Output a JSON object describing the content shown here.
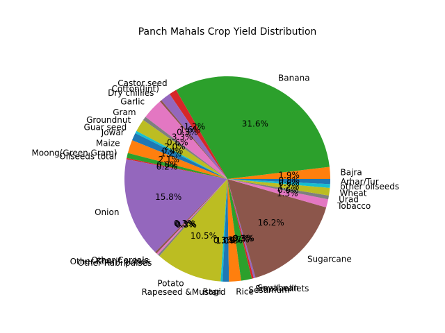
{
  "chart_data": {
    "type": "pie",
    "title": "Panch Mahals Crop Yield Distribution",
    "colors": [
      "#ff7f0e",
      "#2ca02c",
      "#d62728",
      "#9467bd",
      "#8c564b",
      "#e377c2",
      "#7f7f7f",
      "#bcbd22",
      "#17becf",
      "#1f77b4"
    ],
    "slices": [
      {
        "label": "Bajra",
        "value": 1.9,
        "pct_label": "1.9%"
      },
      {
        "label": "Banana",
        "value": 31.6,
        "pct_label": "31.6%"
      },
      {
        "label": "Castor seed",
        "value": 1.2,
        "pct_label": "1.2%"
      },
      {
        "label": "Cotton(lint)",
        "value": 1.6,
        "pct_label": "1.6%"
      },
      {
        "label": "Dry chillies",
        "value": 0.3,
        "pct_label": "0.3%"
      },
      {
        "label": "Garlic",
        "value": 3.3,
        "pct_label": "3.3%"
      },
      {
        "label": "Gram",
        "value": 0.6,
        "pct_label": "0.6%"
      },
      {
        "label": "Groundnut",
        "value": 2.0,
        "pct_label": "2.0%"
      },
      {
        "label": "Guar seed",
        "value": 0.4,
        "pct_label": "0.4%"
      },
      {
        "label": "Jowar",
        "value": 1.2,
        "pct_label": "1.2%"
      },
      {
        "label": "Maize",
        "value": 2.1,
        "pct_label": "2.1%"
      },
      {
        "label": "Moong(Green Gram)",
        "value": 0.8,
        "pct_label": "0.8%"
      },
      {
        "label": "Oilseeds total",
        "value": 0.2,
        "pct_label": "0.2%"
      },
      {
        "label": "Onion",
        "value": 15.8,
        "pct_label": "15.8%"
      },
      {
        "label": "Other Cereals",
        "value": 0.3,
        "pct_label": "0.3%"
      },
      {
        "label": "Other Kharif pulses",
        "value": 0.3,
        "pct_label": "0.3%"
      },
      {
        "label": "Other Rabi pulses",
        "value": 0.3,
        "pct_label": "0.3%"
      },
      {
        "label": "Potato",
        "value": 10.5,
        "pct_label": "10.5%"
      },
      {
        "label": "Ragi",
        "value": 0.3,
        "pct_label": "0.3%"
      },
      {
        "label": "Rapeseed &Mustard",
        "value": 1.0,
        "pct_label": "1.0%"
      },
      {
        "label": "Rice",
        "value": 1.9,
        "pct_label": "1.9%"
      },
      {
        "label": "Sesamum",
        "value": 1.7,
        "pct_label": "1.7%"
      },
      {
        "label": "Small millets",
        "value": 0.3,
        "pct_label": "0.3%"
      },
      {
        "label": "Soyabean",
        "value": 0.3,
        "pct_label": "0.3%"
      },
      {
        "label": "Sugarcane",
        "value": 16.2,
        "pct_label": "16.2%"
      },
      {
        "label": "Tobacco",
        "value": 1.3,
        "pct_label": "1.3%"
      },
      {
        "label": "Urad",
        "value": 0.6,
        "pct_label": "0.6%"
      },
      {
        "label": "Wheat",
        "value": 1.2,
        "pct_label": "1.2%"
      },
      {
        "label": "other oilseeds",
        "value": 0.6,
        "pct_label": "0.6%"
      },
      {
        "label": "Arhar/Tur",
        "value": 0.8,
        "pct_label": "0.8%"
      }
    ],
    "start_angle_deg": 0,
    "direction": "counterclockwise"
  }
}
